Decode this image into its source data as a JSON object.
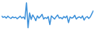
{
  "chart_data": {
    "type": "line",
    "x": [
      0,
      1,
      2,
      3,
      4,
      5,
      6,
      7,
      8,
      9,
      10,
      11,
      12,
      13,
      14,
      15,
      16,
      17,
      18,
      19,
      20,
      21,
      22,
      23,
      24,
      25,
      26,
      27,
      28,
      29,
      30,
      31,
      32,
      33,
      34,
      35,
      36,
      37,
      38,
      39,
      40,
      41,
      42,
      43,
      44,
      45,
      46,
      47,
      48,
      49,
      50,
      51,
      52,
      53,
      54,
      55,
      56,
      57,
      58,
      59
    ],
    "values": [
      55,
      50,
      53,
      48,
      54,
      50,
      47,
      52,
      49,
      51,
      46,
      50,
      54,
      48,
      52,
      45,
      96,
      18,
      64,
      44,
      58,
      50,
      40,
      55,
      48,
      53,
      60,
      45,
      50,
      47,
      53,
      28,
      55,
      50,
      45,
      52,
      58,
      48,
      50,
      46,
      53,
      49,
      55,
      34,
      52,
      48,
      50,
      57,
      45,
      50,
      52,
      48,
      55,
      42,
      50,
      53,
      47,
      52,
      62,
      72
    ],
    "color": "#3a8fd9",
    "xlim": [
      0,
      59
    ],
    "ylim": [
      0,
      100
    ],
    "tick_labels": false,
    "grid": false
  }
}
